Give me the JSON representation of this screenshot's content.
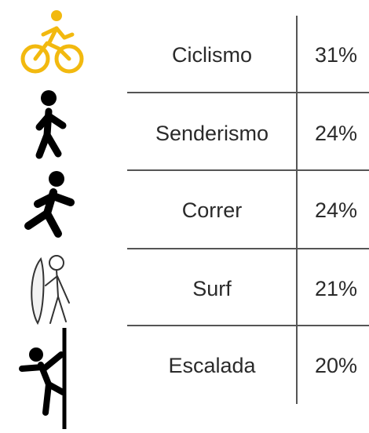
{
  "table": {
    "rows": [
      [
        "Ciclismo",
        "31%"
      ],
      [
        "Senderismo",
        "24%"
      ],
      [
        "Correr",
        "24%"
      ],
      [
        "Surf",
        "21%"
      ],
      [
        "Escalada",
        "20%"
      ]
    ]
  }
}
